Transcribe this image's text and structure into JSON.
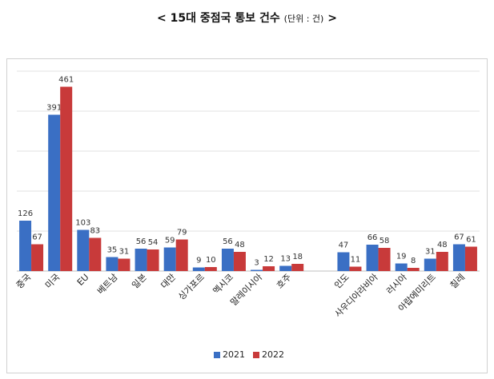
{
  "title": {
    "main": "< 15대 중점국 통보 건수",
    "unit": "(단위 : 건)",
    "close": ">"
  },
  "chart_data": {
    "type": "bar",
    "title": "< 15대 중점국 통보 건수 (단위 : 건) >",
    "xlabel": "",
    "ylabel": "",
    "categories": [
      "중국",
      "미국",
      "EU",
      "베트남",
      "일본",
      "대만",
      "싱가포르",
      "멕시코",
      "말레이시아",
      "호주",
      "",
      "인도",
      "사우디아라비아",
      "러시아",
      "아랍에미리트",
      "칠레"
    ],
    "series": [
      {
        "name": "2021",
        "color": "#3a6fc4",
        "values": [
          126,
          391,
          103,
          35,
          56,
          59,
          9,
          56,
          3,
          13,
          null,
          47,
          66,
          19,
          31,
          67
        ]
      },
      {
        "name": "2022",
        "color": "#c83a3a",
        "values": [
          67,
          461,
          83,
          31,
          54,
          79,
          10,
          48,
          12,
          18,
          null,
          11,
          58,
          8,
          48,
          61
        ]
      }
    ],
    "ylim": [
      0,
      500
    ],
    "grid": true,
    "legend": "bottom-center"
  }
}
